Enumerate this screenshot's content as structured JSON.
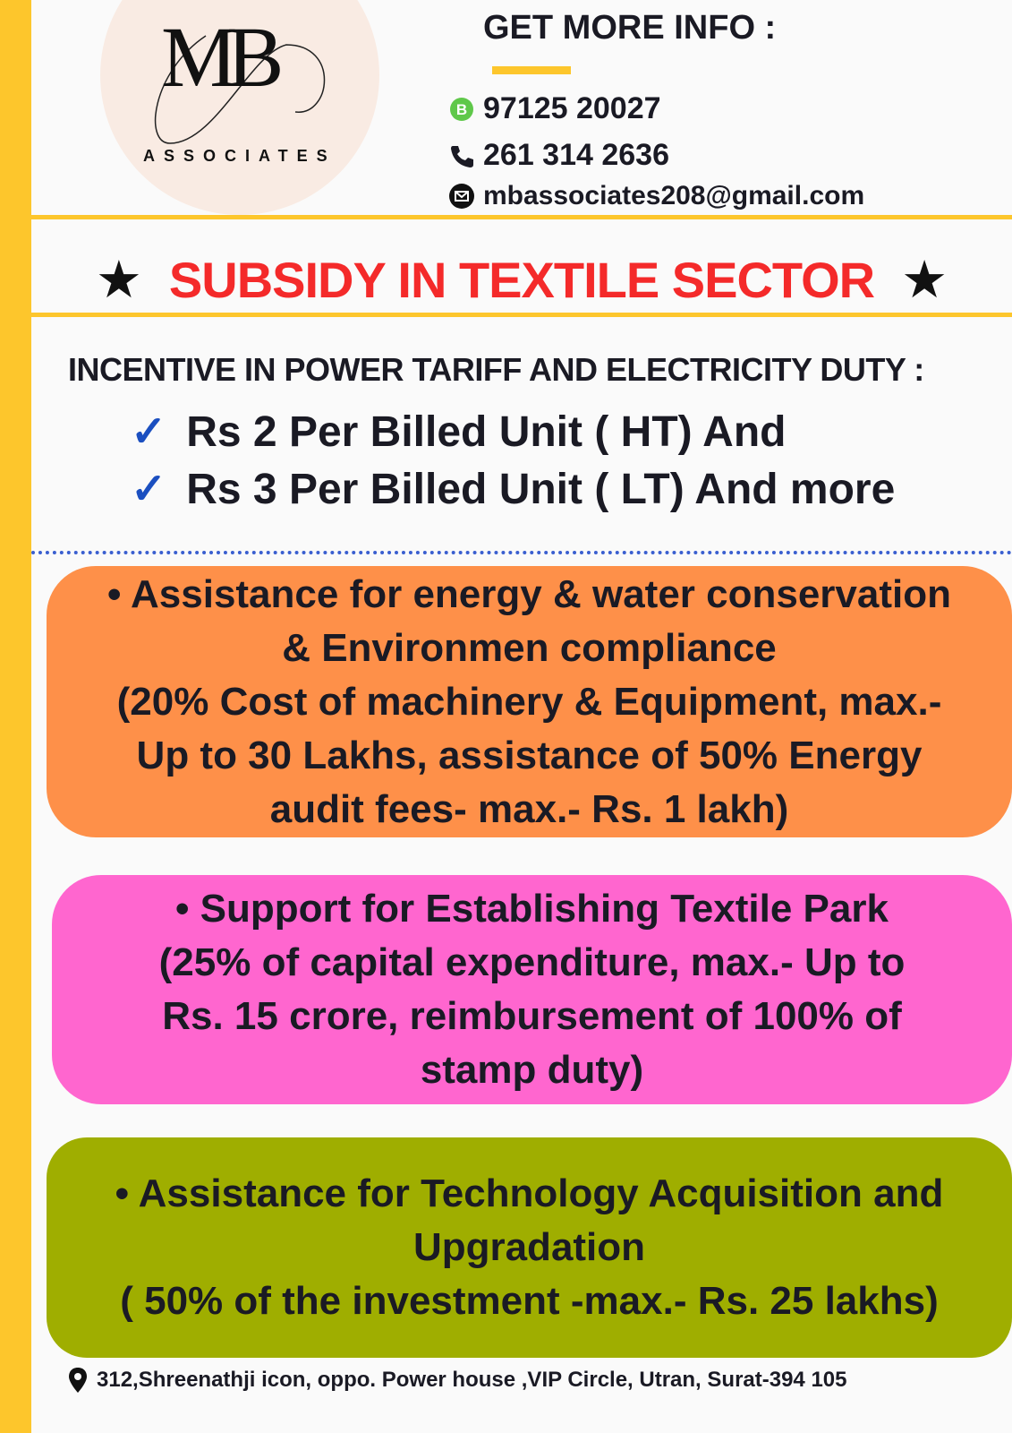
{
  "colors": {
    "accent_yellow": "#fdc62c",
    "title_red": "#f42a2a",
    "check_blue": "#1b4fc0",
    "box_orange": "#fe9049",
    "box_pink": "#ff66cf",
    "box_olive": "#9fae00"
  },
  "logo": {
    "monogram": "MB",
    "subtitle": "ASSOCIATES"
  },
  "info": {
    "title": "GET MORE INFO :",
    "whatsapp": {
      "icon": "whatsapp-business-icon",
      "value": "97125  20027"
    },
    "phone": {
      "icon": "phone-icon",
      "value": "261 314  2636"
    },
    "email": {
      "icon": "email-icon",
      "value": "mbassociates208@gmail.com"
    }
  },
  "title": "SUBSIDY IN TEXTILE SECTOR",
  "star_icon": "★",
  "incentive": {
    "heading": "INCENTIVE  IN  POWER TARIFF AND ELECTRICITY DUTY :",
    "items": [
      "Rs 2 Per Billed Unit ( HT)  And",
      "Rs 3 Per Billed Unit ( LT)  And more"
    ],
    "check_icon": "✓"
  },
  "boxes": [
    {
      "lines": [
        "• Assistance for energy & water conservation",
        "& Environmen compliance",
        "(20% Cost of machinery & Equipment, max.-",
        "Up to 30 Lakhs, assistance of 50% Energy",
        "audit fees- max.- Rs. 1 lakh)"
      ]
    },
    {
      "lines": [
        "• Support  for Establishing Textile Park",
        "(25% of capital expenditure, max.- Up to",
        "Rs. 15 crore, reimbursement of 100% of",
        "stamp duty)"
      ]
    },
    {
      "lines": [
        "• Assistance for Technology  Acquisition and",
        "Upgradation",
        "( 50% of the investment -max.- Rs. 25 lakhs)"
      ]
    }
  ],
  "footer": {
    "icon": "location-pin-icon",
    "address": "312,Shreenathji icon, oppo. Power house ,VIP Circle, Utran, Surat-394 105"
  }
}
